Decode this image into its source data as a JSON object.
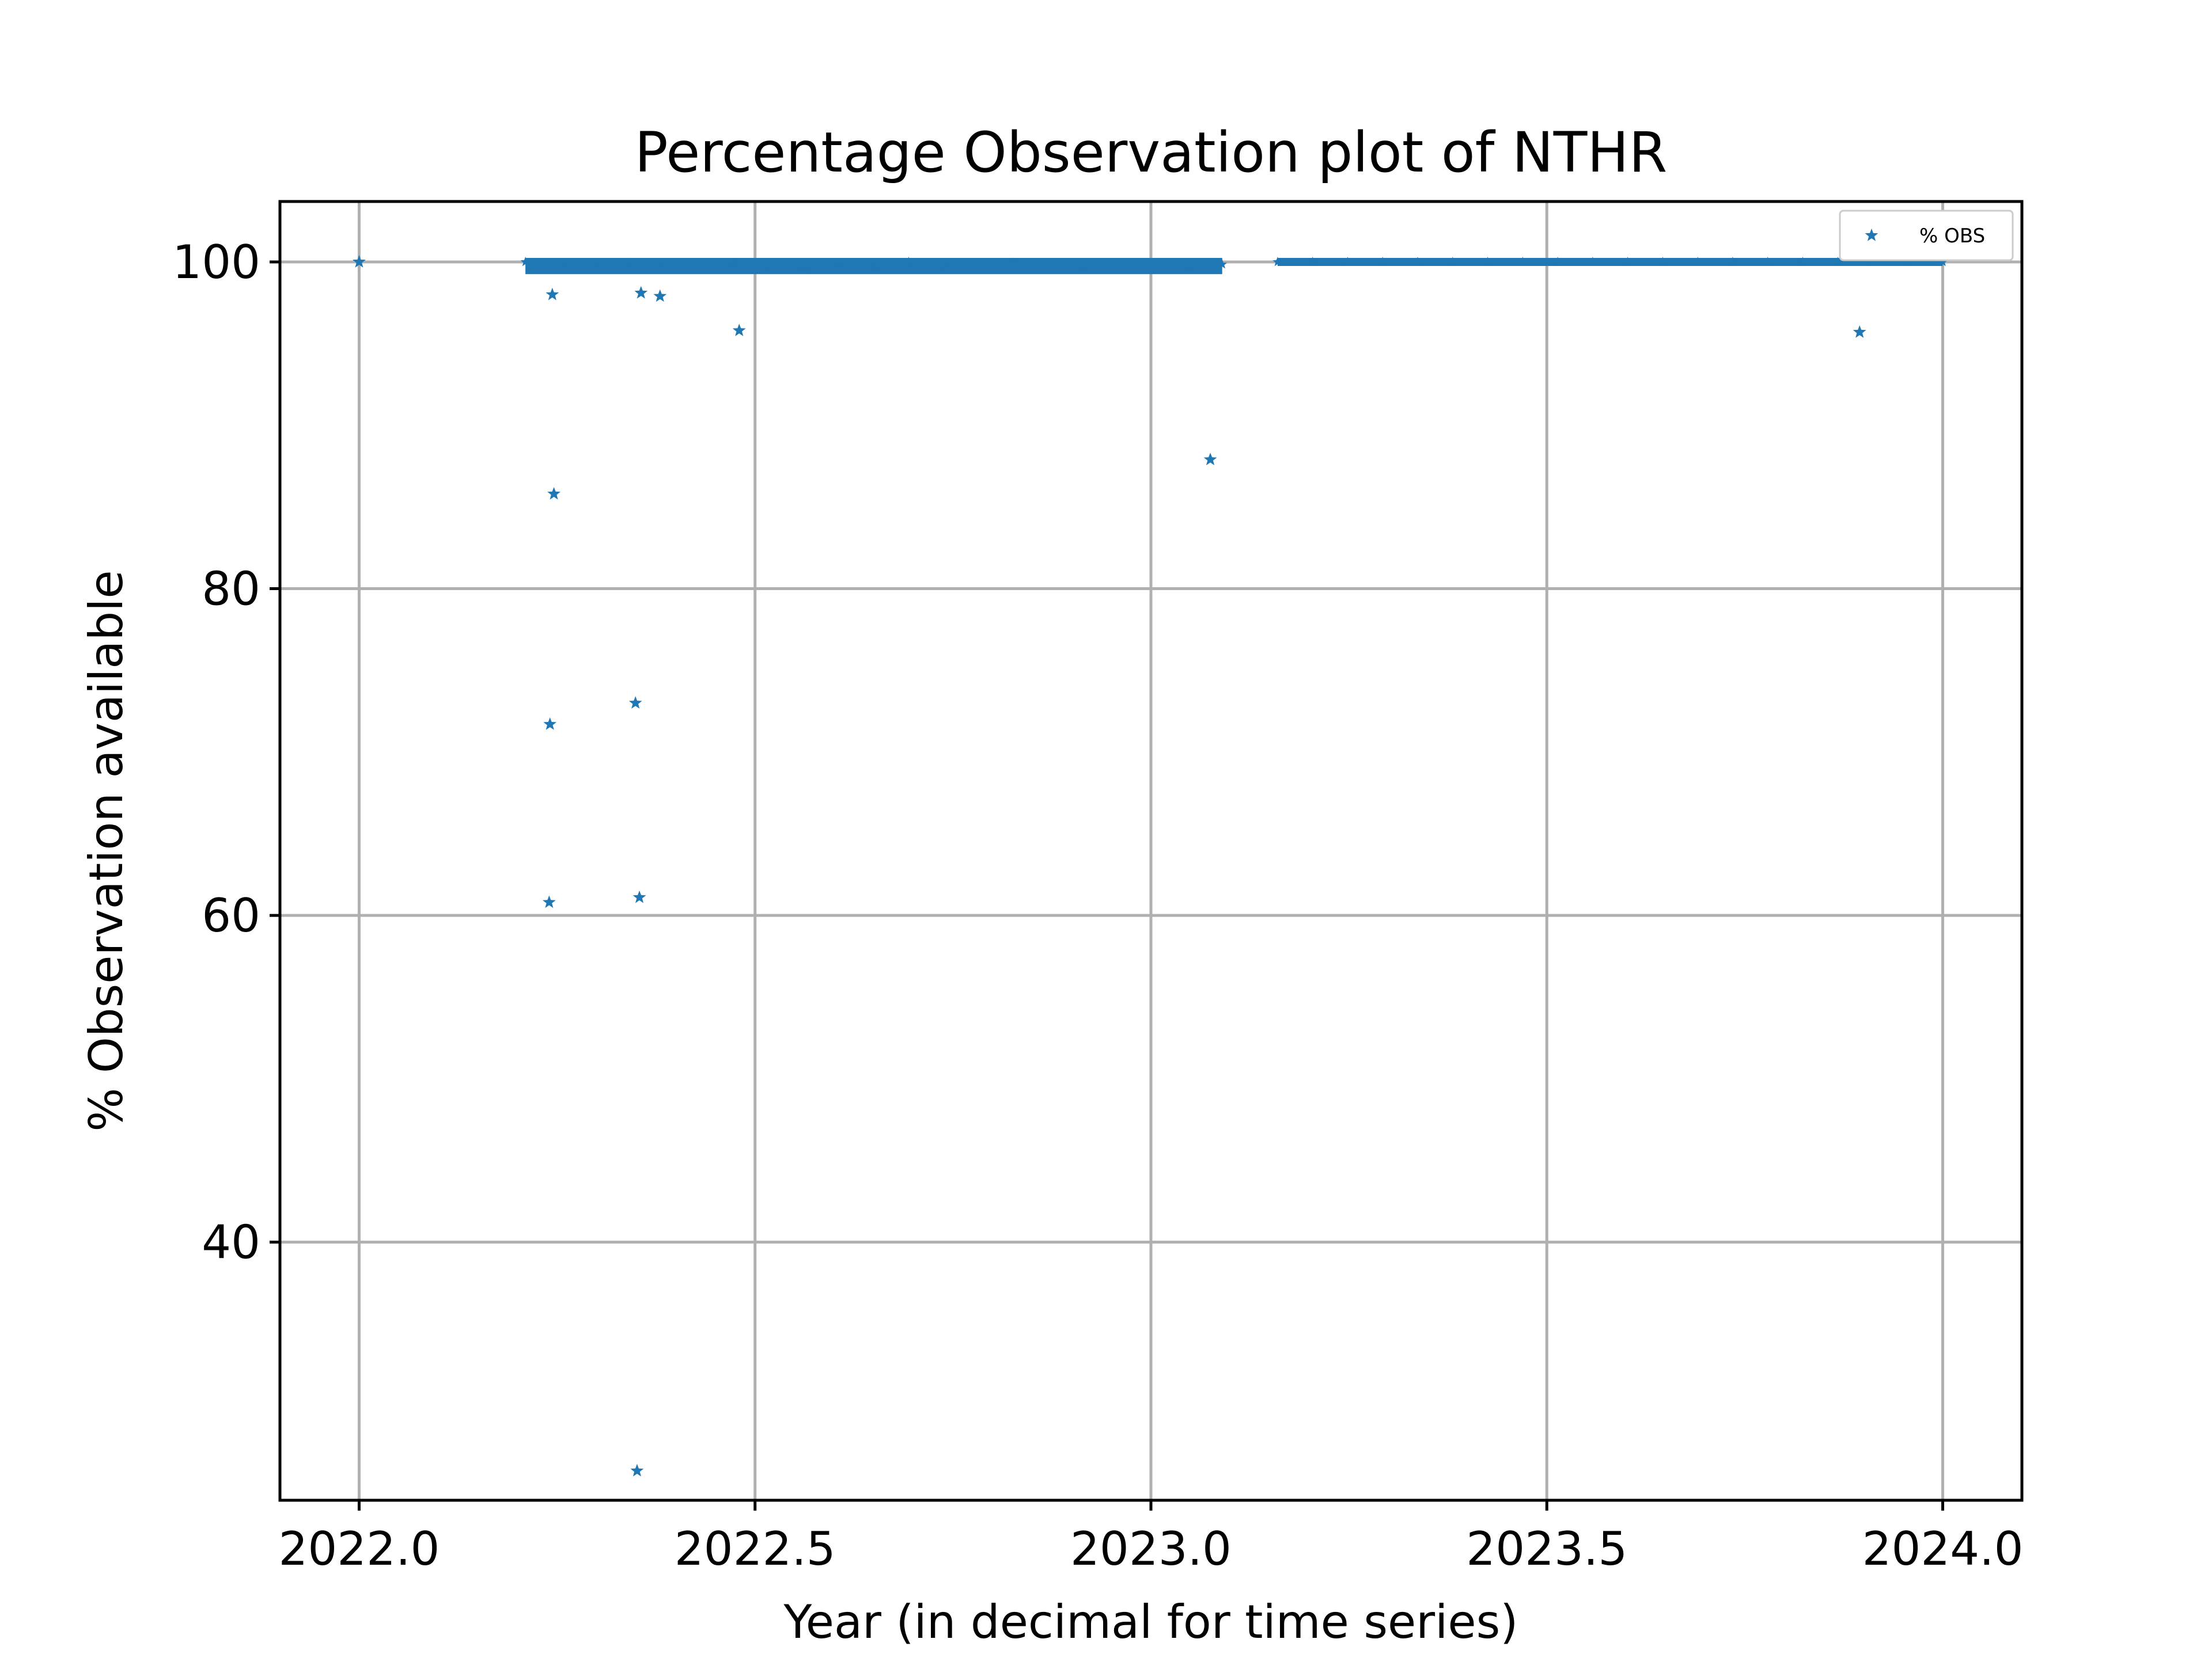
{
  "chart_data": {
    "type": "scatter",
    "title": "Percentage Observation plot of NTHR",
    "xlabel": "Year (in decimal for time series)",
    "ylabel": "% Observation available",
    "xlim": [
      2021.9,
      2024.1
    ],
    "ylim": [
      24.2,
      103.7
    ],
    "xticks": [
      2022.0,
      2022.5,
      2023.0,
      2023.5,
      2024.0
    ],
    "xtick_labels": [
      "2022.0",
      "2022.5",
      "2023.0",
      "2023.5",
      "2024.0"
    ],
    "yticks": [
      40,
      60,
      80,
      100
    ],
    "ytick_labels": [
      "40",
      "60",
      "80",
      "100"
    ],
    "grid": true,
    "legend_position": "upper right",
    "marker": "star",
    "series": [
      {
        "name": "% OBS",
        "color": "#1f77b4",
        "dense_segments": [
          {
            "x_start": 2022.21,
            "x_end": 2023.09,
            "y_min": 99.5,
            "y_max": 100.0
          },
          {
            "x_start": 2023.16,
            "x_end": 2024.0,
            "y_min": 100.0,
            "y_max": 100.0
          }
        ],
        "points": [
          {
            "x": 2022.0,
            "y": 100.0
          },
          {
            "x": 2022.24,
            "y": 60.8
          },
          {
            "x": 2022.241,
            "y": 71.7
          },
          {
            "x": 2022.244,
            "y": 98.0
          },
          {
            "x": 2022.246,
            "y": 85.8
          },
          {
            "x": 2022.349,
            "y": 73.0
          },
          {
            "x": 2022.351,
            "y": 26.0
          },
          {
            "x": 2022.354,
            "y": 61.1
          },
          {
            "x": 2022.356,
            "y": 98.1
          },
          {
            "x": 2022.38,
            "y": 97.9
          },
          {
            "x": 2022.48,
            "y": 95.8
          },
          {
            "x": 2023.075,
            "y": 87.9
          },
          {
            "x": 2023.895,
            "y": 95.7
          }
        ]
      }
    ]
  }
}
